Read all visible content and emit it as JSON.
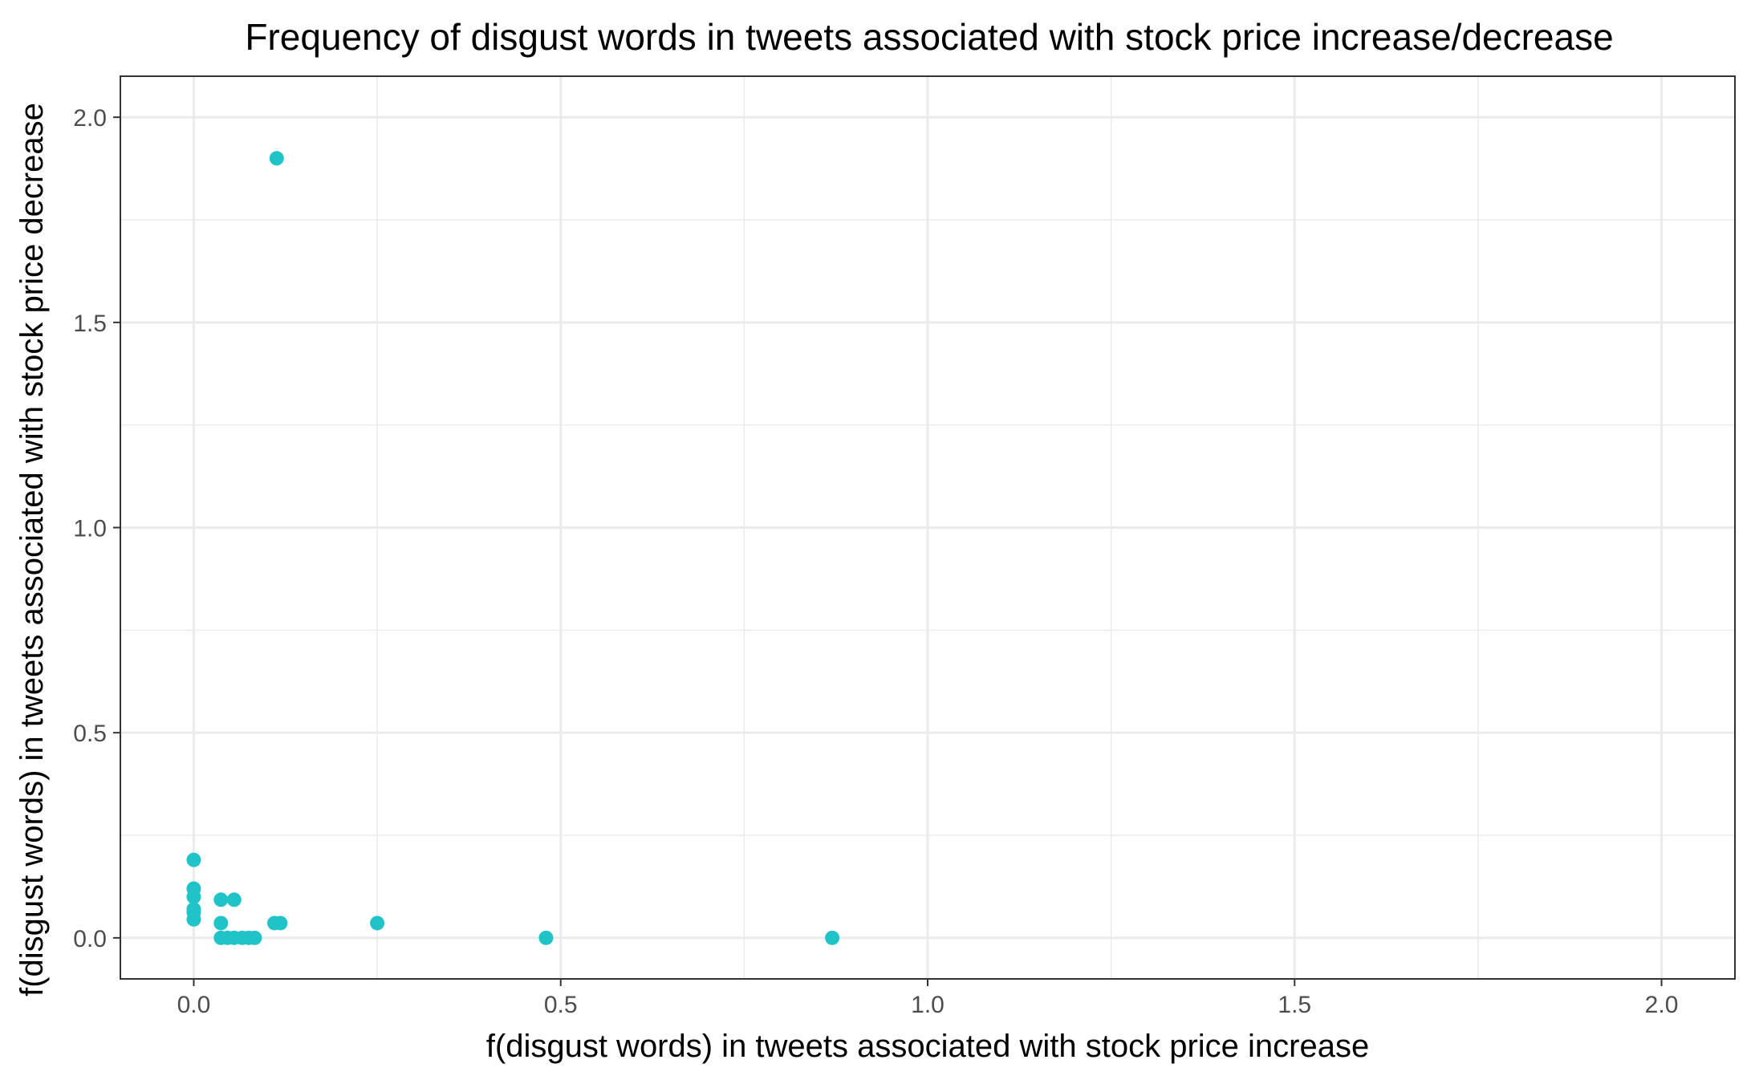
{
  "chart_data": {
    "type": "scatter",
    "title": "Frequency of disgust words in tweets associated with stock price increase/decrease",
    "xlabel": "f(disgust words) in tweets associated with stock price increase",
    "ylabel": "f(disgust words) in tweets associated with stock price decrease",
    "xlim": [
      -0.1,
      2.1
    ],
    "ylim": [
      -0.1,
      2.1
    ],
    "x_ticks": [
      "0.0",
      "0.5",
      "1.0",
      "1.5",
      "2.0"
    ],
    "y_ticks": [
      "0.0",
      "0.5",
      "1.0",
      "1.5",
      "2.0"
    ],
    "grid": true,
    "point_color": "#20C3C8",
    "points": [
      {
        "x": 0.113,
        "y": 1.9
      },
      {
        "x": 0.0,
        "y": 0.19
      },
      {
        "x": 0.0,
        "y": 0.12
      },
      {
        "x": 0.0,
        "y": 0.1
      },
      {
        "x": 0.0,
        "y": 0.07
      },
      {
        "x": 0.0,
        "y": 0.062
      },
      {
        "x": 0.0,
        "y": 0.045
      },
      {
        "x": 0.037,
        "y": 0.093
      },
      {
        "x": 0.055,
        "y": 0.093
      },
      {
        "x": 0.037,
        "y": 0.036
      },
      {
        "x": 0.11,
        "y": 0.036
      },
      {
        "x": 0.118,
        "y": 0.036
      },
      {
        "x": 0.25,
        "y": 0.036
      },
      {
        "x": 0.037,
        "y": 0.0
      },
      {
        "x": 0.046,
        "y": 0.0
      },
      {
        "x": 0.055,
        "y": 0.0
      },
      {
        "x": 0.066,
        "y": 0.0
      },
      {
        "x": 0.075,
        "y": 0.0
      },
      {
        "x": 0.083,
        "y": 0.0
      },
      {
        "x": 0.48,
        "y": 0.0
      },
      {
        "x": 0.87,
        "y": 0.0
      }
    ]
  }
}
